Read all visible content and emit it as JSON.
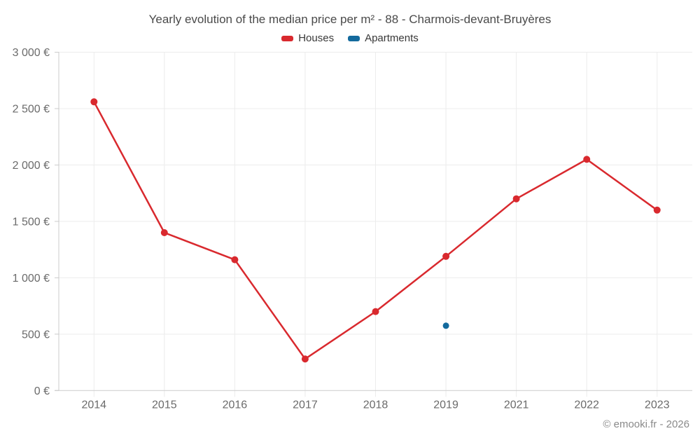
{
  "chart_data": {
    "type": "line",
    "title": "Yearly evolution of the median price per m² - 88 - Charmois-devant-Bruyères",
    "categories": [
      "2014",
      "2015",
      "2016",
      "2017",
      "2018",
      "2019",
      "2021",
      "2022",
      "2023"
    ],
    "series": [
      {
        "name": "Houses",
        "color": "#d9292e",
        "values": [
          2560,
          1400,
          1160,
          280,
          700,
          1190,
          1700,
          2050,
          1600
        ]
      },
      {
        "name": "Apartments",
        "color": "#136a9d",
        "values": [
          null,
          null,
          null,
          null,
          null,
          575,
          null,
          null,
          null
        ]
      }
    ],
    "ylim": [
      0,
      3000
    ],
    "ytick_step": 500,
    "ytick_suffix": " €",
    "thousands_separator": " ",
    "grid": true,
    "legend_position": "top"
  },
  "footer": {
    "credit": "© emooki.fr - 2026"
  }
}
